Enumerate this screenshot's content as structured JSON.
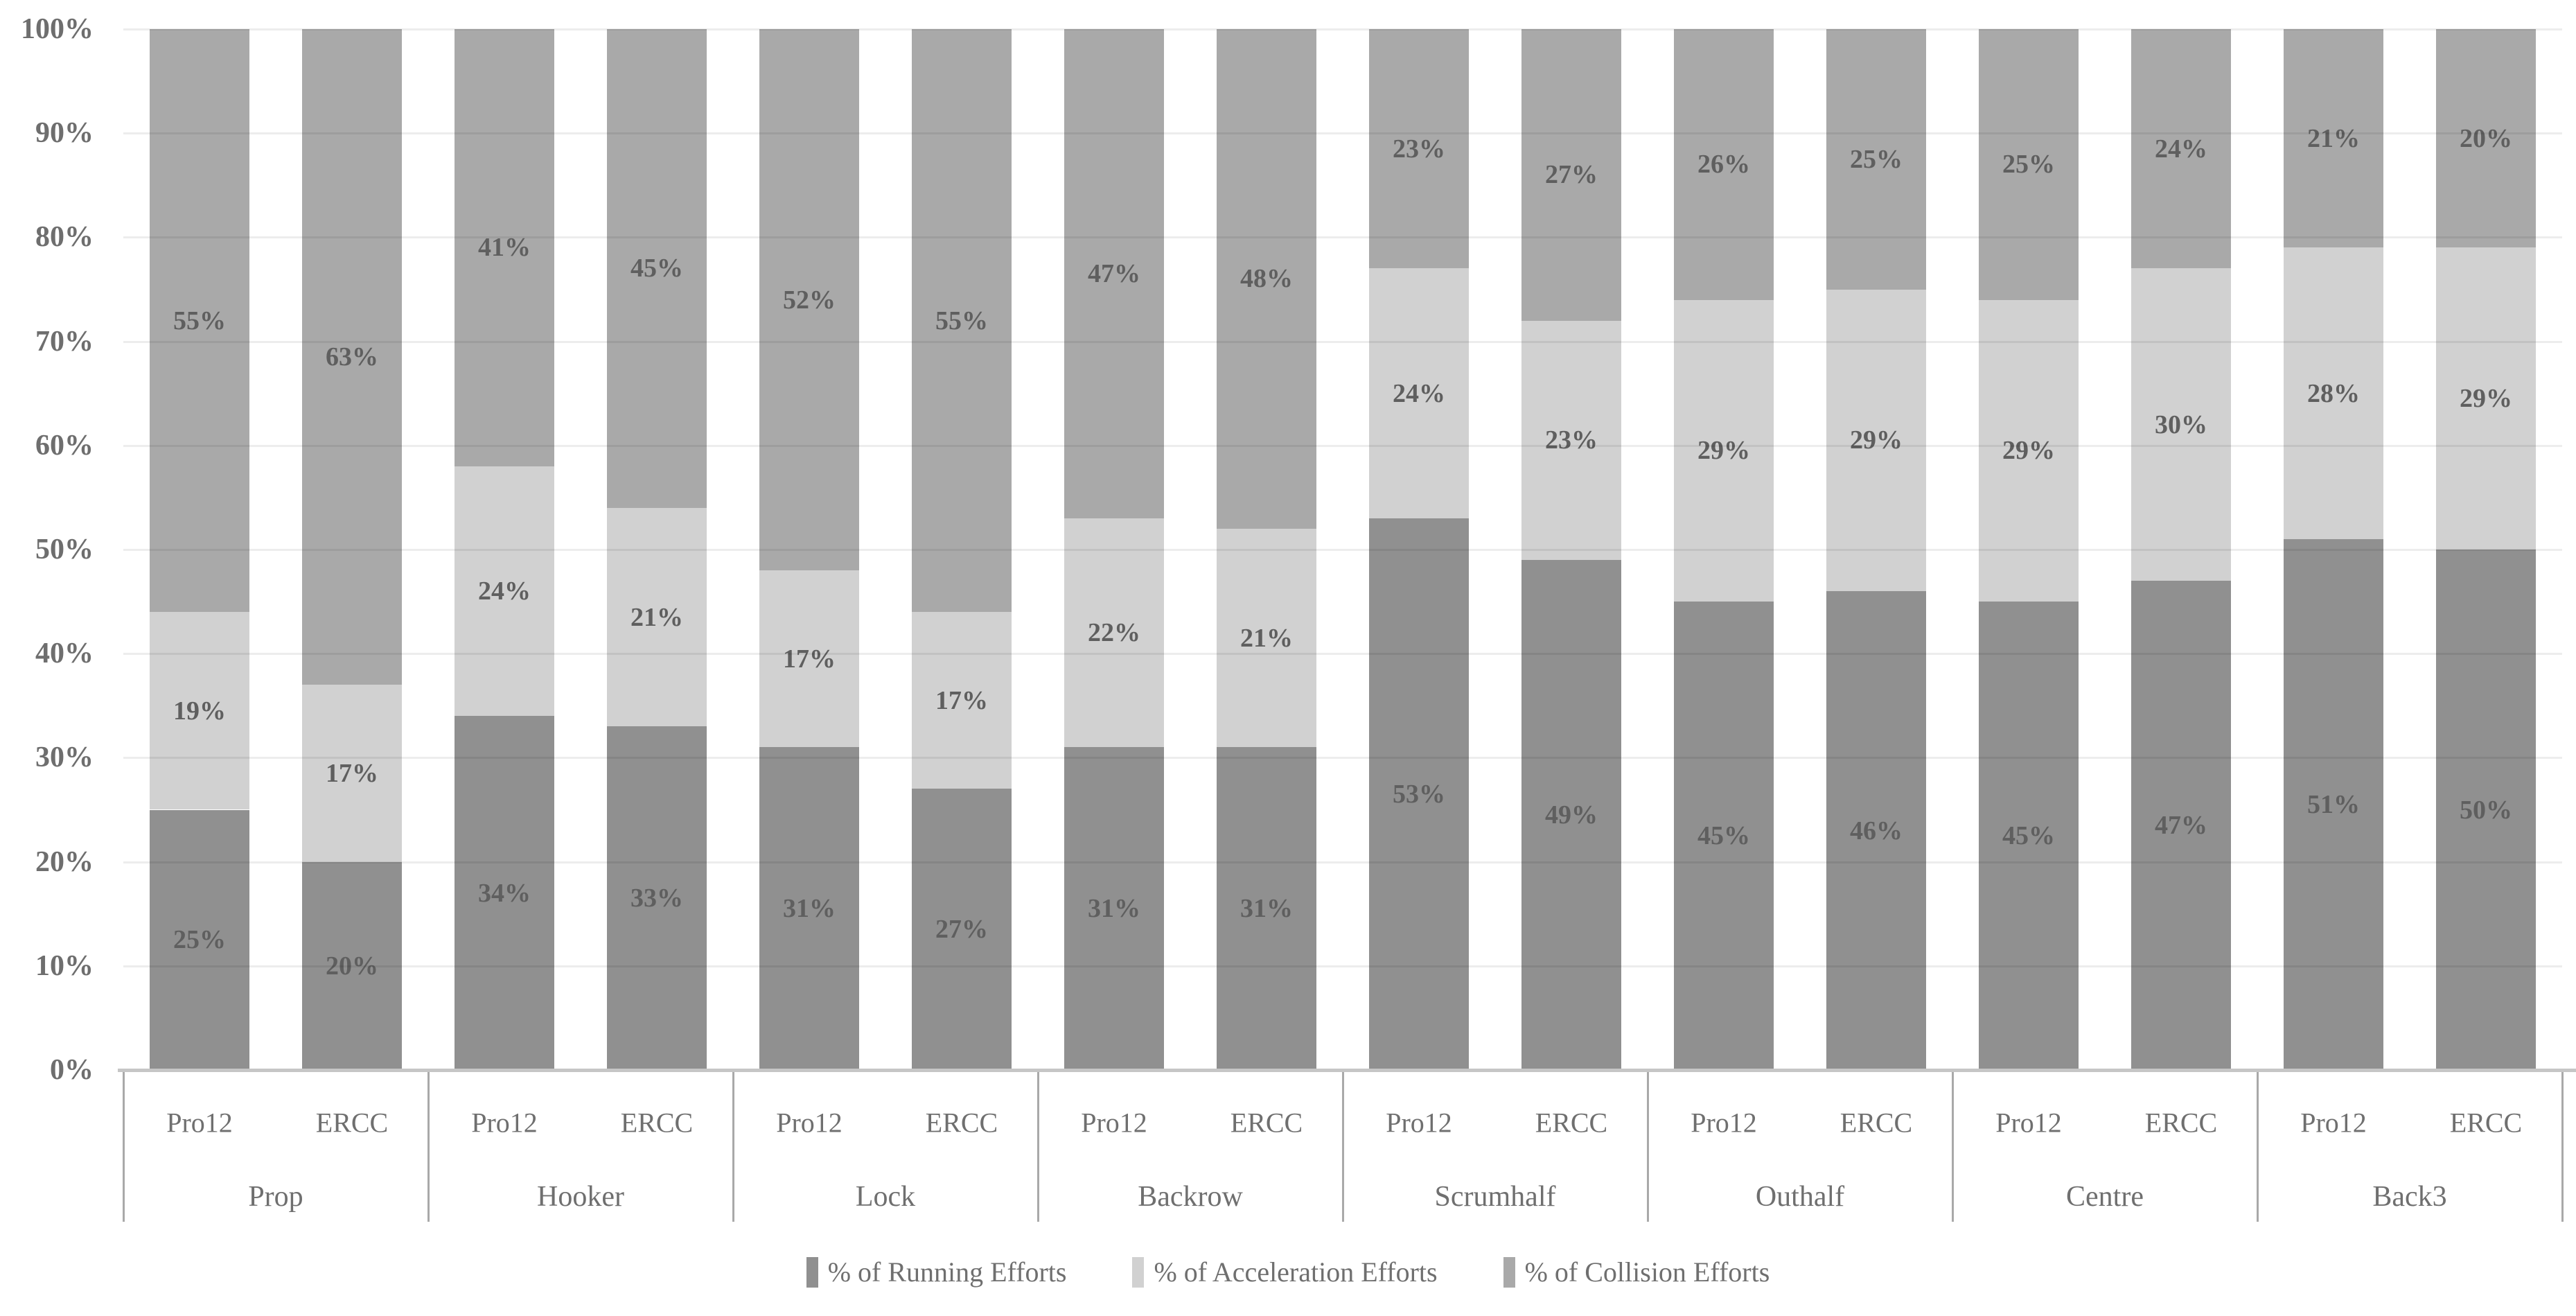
{
  "chart_data": {
    "type": "bar",
    "variant": "stacked-percent-column",
    "title": "",
    "xlabel": "",
    "ylabel": "",
    "ylim": [
      0,
      100
    ],
    "grid": "horizontal",
    "legend_position": "bottom",
    "y_ticks": [
      "0%",
      "10%",
      "20%",
      "30%",
      "40%",
      "50%",
      "60%",
      "70%",
      "80%",
      "90%",
      "100%"
    ],
    "x_groups": [
      "Prop",
      "Hooker",
      "Lock",
      "Backrow",
      "Scrumhalf",
      "Outhalf",
      "Centre",
      "Back3"
    ],
    "x_sub_labels": [
      "Pro12",
      "ERCC"
    ],
    "series": [
      {
        "name": "% of Running Efforts",
        "color": "#909090",
        "values": [
          25,
          20,
          34,
          33,
          31,
          27,
          31,
          31,
          53,
          49,
          45,
          46,
          45,
          47,
          51,
          50
        ]
      },
      {
        "name": "% of Acceleration Efforts",
        "color": "#d1d1d1",
        "values": [
          19,
          17,
          24,
          21,
          17,
          17,
          22,
          21,
          24,
          23,
          29,
          29,
          29,
          30,
          28,
          29
        ]
      },
      {
        "name": "% of Collision Efforts",
        "color": "#a9a9a9",
        "values": [
          55,
          63,
          41,
          45,
          52,
          55,
          47,
          48,
          23,
          27,
          26,
          25,
          25,
          24,
          21,
          20
        ]
      }
    ],
    "data_label_suffix": "%"
  },
  "colors": {
    "data_label_text": "#5f5f5f",
    "axis_tick_text": "#6e6e6e",
    "category_text": "#6f6f6f",
    "legend_text": "#6f6f6f",
    "gridline": "rgba(0,0,0,0.07)",
    "axis_line": "#c6c6c6",
    "table_border": "#a9a9a9",
    "background": "#ffffff"
  }
}
